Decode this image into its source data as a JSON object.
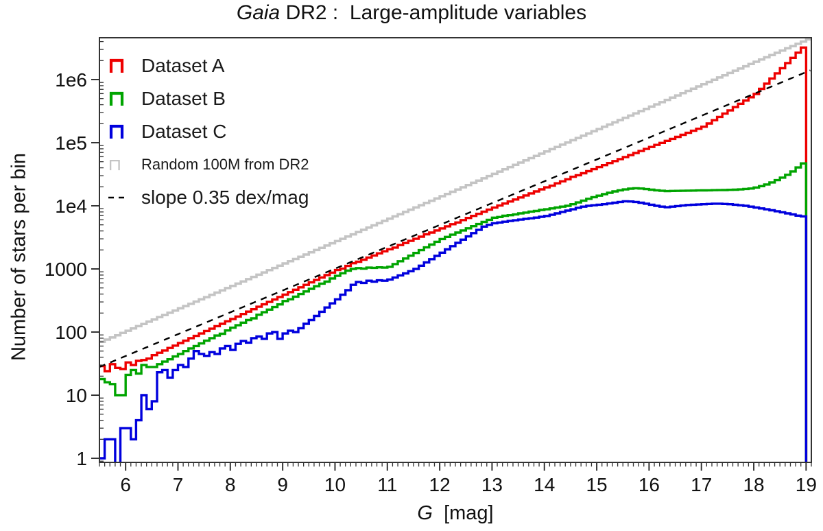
{
  "title": {
    "italic": "Gaia",
    "rest": " DR2 :  Large-amplitude variables"
  },
  "axes": {
    "ylabel": "Number of stars per bin",
    "xlabel_italic": "G",
    "xlabel_rest": "  [mag]",
    "xlim": [
      5.5,
      19.1
    ],
    "ylim_log": [
      -0.065,
      6.663
    ],
    "x_major_ticks": [
      6,
      7,
      8,
      9,
      10,
      11,
      12,
      13,
      14,
      15,
      16,
      17,
      18,
      19
    ],
    "x_minor_step": 0.1,
    "y_major_ticks": [
      {
        "value": 1,
        "label": "1"
      },
      {
        "value": 10,
        "label": "10"
      },
      {
        "value": 100,
        "label": "100"
      },
      {
        "value": 1000,
        "label": "1000"
      },
      {
        "value": 10000,
        "label": "1e4"
      },
      {
        "value": 100000,
        "label": "1e5"
      },
      {
        "value": 1000000,
        "label": "1e6"
      }
    ],
    "grid": false,
    "frame": true
  },
  "legend": {
    "position": "upper-left",
    "items": [
      {
        "label": "Dataset A",
        "color": "#ee0000",
        "glyph": "step",
        "small": false
      },
      {
        "label": "Dataset B",
        "color": "#00a400",
        "glyph": "step",
        "small": false
      },
      {
        "label": "Dataset C",
        "color": "#0000dd",
        "glyph": "step",
        "small": false
      },
      {
        "label": "Random 100M from DR2",
        "color": "#c4c4c4",
        "glyph": "step",
        "small": true
      },
      {
        "label": "slope 0.35 dex/mag",
        "color": "#000000",
        "glyph": "dashed",
        "small": false
      }
    ]
  },
  "chart_data": {
    "type": "step-histogram-log",
    "bin_start": 5.5,
    "bin_width": 0.1,
    "x_unit": "G mag",
    "y_unit": "stars per bin",
    "dashed_line": {
      "label": "slope 0.35 dex/mag",
      "x": [
        5.5,
        19.08
      ],
      "y": [
        28,
        1400000
      ],
      "slope_dex_per_mag": 0.35,
      "color": "#000000"
    },
    "series": [
      {
        "name": "Random 100M from DR2",
        "color": "#c4c4c4",
        "width": 3.5,
        "end_drop": false,
        "values": [
          70,
          76,
          82,
          89,
          97,
          105,
          114,
          124,
          134,
          146,
          158,
          172,
          186,
          202,
          219,
          238,
          258,
          280,
          304,
          330,
          358,
          389,
          422,
          458,
          497,
          539,
          585,
          635,
          689,
          748,
          811,
          880,
          955,
          1037,
          1125,
          1221,
          1325,
          1438,
          1560,
          1693,
          1837,
          1994,
          2163,
          2348,
          2548,
          2765,
          3000,
          3256,
          3533,
          3834,
          4161,
          4515,
          4900,
          5317,
          5770,
          6262,
          6795,
          7374,
          8002,
          8684,
          9424,
          10227,
          11098,
          12043,
          13069,
          14183,
          15391,
          16702,
          18125,
          19669,
          21344,
          23162,
          25135,
          27276,
          29600,
          32121,
          34857,
          37826,
          41048,
          44545,
          48339,
          52457,
          56925,
          61774,
          67036,
          72746,
          78943,
          85668,
          92965,
          100884,
          109477,
          118802,
          128922,
          139903,
          151820,
          164751,
          178786,
          194015,
          210542,
          228477,
          247939,
          269059,
          291978,
          316848,
          343836,
          373123,
          404906,
          439398,
          476830,
          517448,
          561523,
          609348,
          661244,
          717562,
          778681,
          845012,
          917003,
          995139,
          1079946,
          1171993,
          1271896,
          1380323,
          1497999,
          1625710,
          1764308,
          1914716,
          2077936,
          2255055,
          2447250,
          2655796,
          2882072,
          3127574,
          3393917,
          3682855,
          3996289,
          4336276
        ]
      },
      {
        "name": "Dataset A",
        "color": "#ee0000",
        "width": 3.4,
        "end_drop": true,
        "values": [
          29,
          24,
          31,
          27,
          26,
          33,
          30,
          35,
          36,
          38,
          43,
          47,
          51,
          56,
          61,
          67,
          73,
          80,
          87,
          95,
          104,
          113,
          124,
          135,
          148,
          161,
          176,
          193,
          211,
          230,
          252,
          275,
          300,
          328,
          359,
          392,
          429,
          469,
          512,
          560,
          612,
          669,
          731,
          799,
          873,
          960,
          1010,
          1118,
          1230,
          1301,
          1404,
          1515,
          1635,
          1764,
          1903,
          2053,
          2180,
          2390,
          2579,
          2782,
          3002,
          3239,
          3540,
          3771,
          4068,
          4389,
          4736,
          5110,
          5450,
          5948,
          6417,
          6924,
          7471,
          8061,
          8697,
          9383,
          10101,
          10874,
          11706,
          12601,
          13565,
          14603,
          15720,
          16923,
          18218,
          19612,
          20800,
          22728,
          24467,
          26339,
          28800,
          30524,
          32859,
          35373,
          38080,
          40993,
          44129,
          47505,
          51139,
          55051,
          59263,
          63796,
          68677,
          73931,
          79587,
          85675,
          92229,
          99285,
          106880,
          115057,
          123859,
          133334,
          143534,
          154514,
          166334,
          179000,
          201700,
          227300,
          256200,
          288700,
          325400,
          366700,
          413200,
          465700,
          524800,
          591500,
          713900,
          861700,
          1040000,
          1255000,
          1515000,
          1829000,
          2208000,
          2665000,
          3216000
        ]
      },
      {
        "name": "Dataset B",
        "color": "#00a400",
        "width": 3.4,
        "end_drop": true,
        "values": [
          18,
          16,
          15,
          10,
          10,
          21,
          25,
          22,
          30,
          28,
          28,
          31,
          34,
          37,
          41,
          45,
          50,
          55,
          60,
          66,
          73,
          80,
          88,
          94,
          106,
          117,
          128,
          141,
          155,
          165,
          188,
          206,
          227,
          249,
          274,
          310,
          331,
          364,
          400,
          440,
          484,
          532,
          585,
          630,
          707,
          777,
          854,
          939,
          1000,
          1030,
          1010,
          1050,
          1040,
          1060,
          1050,
          1080,
          1195,
          1323,
          1464,
          1620,
          1793,
          1985,
          2197,
          2432,
          2692,
          2980,
          3222,
          3483,
          3765,
          4070,
          4400,
          4756,
          5141,
          5557,
          6007,
          6494,
          6650,
          6950,
          7100,
          7300,
          7600,
          7800,
          8100,
          8300,
          8600,
          8800,
          9100,
          9400,
          9700,
          10000,
          10600,
          11300,
          12100,
          12900,
          13700,
          14500,
          15300,
          16100,
          16900,
          17600,
          18200,
          18700,
          19000,
          18800,
          18400,
          18000,
          17600,
          17300,
          17100,
          17200,
          17250,
          17300,
          17400,
          17450,
          17500,
          17550,
          17600,
          17700,
          17750,
          17800,
          17900,
          18000,
          18200,
          18500,
          18800,
          19500,
          20500,
          21800,
          23500,
          25500,
          28000,
          31000,
          35000,
          40500,
          47000
        ]
      },
      {
        "name": "Dataset C",
        "color": "#0000dd",
        "width": 3.4,
        "end_drop": true,
        "values": [
          1,
          2,
          2,
          0,
          3,
          3,
          2,
          4,
          10,
          6,
          8,
          23,
          25,
          19,
          25,
          30,
          28,
          38,
          50,
          45,
          42,
          48,
          45,
          55,
          60,
          52,
          65,
          72,
          68,
          80,
          85,
          78,
          95,
          100,
          78,
          95,
          105,
          100,
          115,
          135,
          155,
          180,
          210,
          245,
          285,
          330,
          390,
          460,
          560,
          620,
          600,
          650,
          630,
          660,
          650,
          680,
          730,
          790,
          850,
          920,
          1000,
          1126,
          1268,
          1428,
          1608,
          1811,
          2039,
          2296,
          2586,
          2912,
          3279,
          3693,
          4159,
          4683,
          5000,
          5300,
          5450,
          5600,
          5750,
          5900,
          6050,
          6200,
          6350,
          6500,
          6700,
          6900,
          7200,
          7600,
          8000,
          8400,
          8800,
          9300,
          9700,
          10000,
          10200,
          10400,
          10600,
          10900,
          11200,
          11500,
          11800,
          11700,
          11500,
          11200,
          10800,
          10400,
          10000,
          9700,
          9500,
          9700,
          9900,
          10100,
          10300,
          10400,
          10500,
          10600,
          10700,
          10800,
          10800,
          10700,
          10600,
          10400,
          10200,
          10000,
          9700,
          9400,
          9100,
          8800,
          8500,
          8200,
          7900,
          7600,
          7300,
          7000,
          6800
        ]
      }
    ]
  }
}
